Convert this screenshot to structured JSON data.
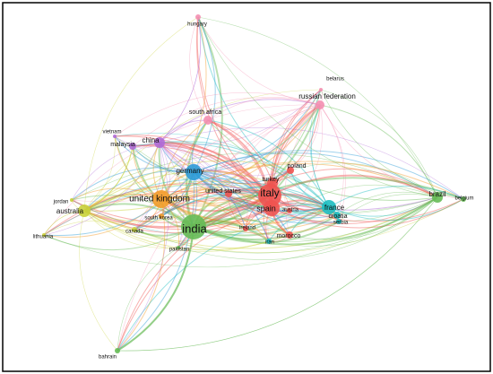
{
  "nodes": [
    {
      "label": "hungary"
    },
    {
      "label": "belarus"
    },
    {
      "label": "russian federation"
    },
    {
      "label": "south africa"
    },
    {
      "label": "vietnam"
    },
    {
      "label": "malaysia"
    },
    {
      "label": "china"
    },
    {
      "label": "germany"
    },
    {
      "label": "poland"
    },
    {
      "label": "turkey"
    },
    {
      "label": "jordan"
    },
    {
      "label": "australia"
    },
    {
      "label": "united kingdom"
    },
    {
      "label": "united states"
    },
    {
      "label": "italy"
    },
    {
      "label": "spain"
    },
    {
      "label": "austria"
    },
    {
      "label": "france"
    },
    {
      "label": "croatia"
    },
    {
      "label": "serbia"
    },
    {
      "label": "brazil"
    },
    {
      "label": "belgium"
    },
    {
      "label": "south korea"
    },
    {
      "label": "canada"
    },
    {
      "label": "lithuania"
    },
    {
      "label": "india"
    },
    {
      "label": "ireland"
    },
    {
      "label": "iran"
    },
    {
      "label": "morocco"
    },
    {
      "label": "pakistan"
    },
    {
      "label": "bahrain"
    }
  ]
}
